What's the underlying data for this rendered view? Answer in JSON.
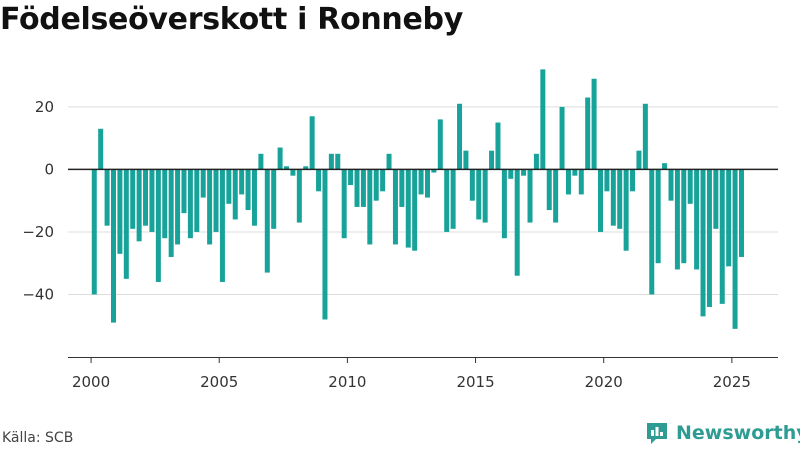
{
  "title": "Födelseöverskott i Ronneby",
  "source": "Källa: SCB",
  "brand": "Newsworthy",
  "colors": {
    "bar": "#17a39a",
    "brand": "#2f9c94",
    "grid": "#dddddd",
    "zero": "#222222"
  },
  "chart_data": {
    "type": "bar",
    "title": "Födelseöverskott i Ronneby",
    "xlabel": "",
    "ylabel": "",
    "frequency": "quarterly",
    "start": "2000 Q1",
    "xlim": [
      1999.1,
      2026.8
    ],
    "ylim": [
      -60,
      35
    ],
    "x_ticks": [
      2000,
      2005,
      2010,
      2015,
      2020,
      2025
    ],
    "y_ticks": [
      -40,
      -20,
      0,
      20
    ],
    "y_tick_labels": [
      "−40",
      "−20",
      "0",
      "20"
    ],
    "grid": true,
    "values": [
      -40,
      13,
      -18,
      -49,
      -27,
      -35,
      -19,
      -23,
      -18,
      -20,
      -36,
      -22,
      -28,
      -24,
      -14,
      -22,
      -20,
      -9,
      -24,
      -20,
      -36,
      -11,
      -16,
      -8,
      -13,
      -18,
      5,
      -33,
      -19,
      7,
      1,
      -2,
      -17,
      1,
      17,
      -7,
      -48,
      5,
      5,
      -22,
      -5,
      -12,
      -12,
      -24,
      -10,
      -7,
      5,
      -24,
      -12,
      -25,
      -26,
      -8,
      -9,
      -1,
      16,
      -20,
      -19,
      21,
      6,
      -10,
      -16,
      -17,
      6,
      15,
      -22,
      -3,
      -34,
      -2,
      -17,
      5,
      32,
      -13,
      -17,
      20,
      -8,
      -2,
      -8,
      23,
      29,
      -20,
      -7,
      -18,
      -19,
      -26,
      -7,
      6,
      21,
      -40,
      -30,
      2,
      -10,
      -32,
      -30,
      -11,
      -32,
      -47,
      -44,
      -19,
      -43,
      -31,
      -51,
      -28
    ]
  }
}
